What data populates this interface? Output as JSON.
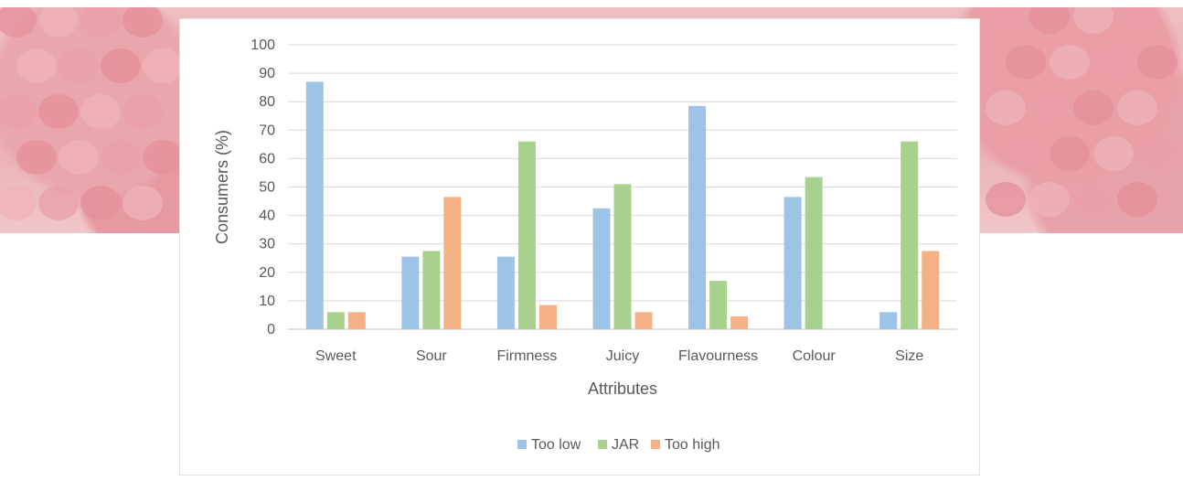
{
  "chart_data": {
    "type": "bar",
    "xlabel": "Attributes",
    "ylabel": "Consumers (%)",
    "ylim": [
      0,
      100
    ],
    "yticks": [
      0,
      10,
      20,
      30,
      40,
      50,
      60,
      70,
      80,
      90,
      100
    ],
    "grid": true,
    "legend_position": "bottom",
    "categories": [
      "Sweet",
      "Sour",
      "Firmness",
      "Juicy",
      "Flavourness",
      "Colour",
      "Size"
    ],
    "series": [
      {
        "name": "Too low",
        "color": "#9dc3e6",
        "values": [
          87,
          25.5,
          25.5,
          42.5,
          78.5,
          46.5,
          6
        ]
      },
      {
        "name": "JAR",
        "color": "#a9d18e",
        "values": [
          6,
          27.5,
          66,
          51,
          17,
          53.5,
          66
        ]
      },
      {
        "name": "Too high",
        "color": "#f4b183",
        "values": [
          6,
          46.5,
          8.5,
          6,
          4.5,
          0,
          27.5
        ]
      }
    ]
  }
}
